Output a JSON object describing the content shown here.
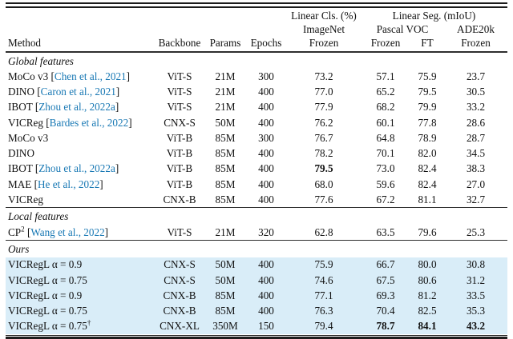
{
  "colors": {
    "citation_blue": "#1878b4",
    "highlight_blue": "#d9edf8",
    "text": "#111111"
  },
  "header": {
    "group_cls": "Linear Cls. (%)",
    "group_seg": "Linear Seg. (mIoU)",
    "sub_imagenet": "ImageNet",
    "sub_pascal": "Pascal VOC",
    "sub_ade": "ADE20k",
    "col_method": "Method",
    "col_backbone": "Backbone",
    "col_params": "Params",
    "col_epochs": "Epochs",
    "frozen_cls": "Frozen",
    "frozen_voc": "Frozen",
    "ft_voc": "FT",
    "frozen_ade": "Frozen"
  },
  "sections": [
    {
      "label": "Global features",
      "highlight": false,
      "rows": [
        {
          "method": "MoCo v3",
          "cite": "Chen et al., 2021",
          "backbone": "ViT-S",
          "params": "21M",
          "epochs": "300",
          "values": [
            "73.2",
            "57.1",
            "75.9",
            "23.7"
          ],
          "bold": []
        },
        {
          "method": "DINO",
          "cite": "Caron et al., 2021",
          "backbone": "ViT-S",
          "params": "21M",
          "epochs": "400",
          "values": [
            "77.0",
            "65.2",
            "79.5",
            "30.5"
          ],
          "bold": []
        },
        {
          "method": "IBOT",
          "cite": "Zhou et al., 2022a",
          "backbone": "ViT-S",
          "params": "21M",
          "epochs": "400",
          "values": [
            "77.9",
            "68.2",
            "79.9",
            "33.2"
          ],
          "bold": []
        },
        {
          "method": "VICReg",
          "cite": "Bardes et al., 2022",
          "backbone": "CNX-S",
          "params": "50M",
          "epochs": "400",
          "values": [
            "76.2",
            "60.1",
            "77.8",
            "28.6"
          ],
          "bold": []
        },
        {
          "method": "MoCo v3",
          "backbone": "ViT-B",
          "params": "85M",
          "epochs": "300",
          "values": [
            "76.7",
            "64.8",
            "78.9",
            "28.7"
          ],
          "bold": []
        },
        {
          "method": "DINO",
          "backbone": "ViT-B",
          "params": "85M",
          "epochs": "400",
          "values": [
            "78.2",
            "70.1",
            "82.0",
            "34.5"
          ],
          "bold": []
        },
        {
          "method": "IBOT",
          "cite": "Zhou et al., 2022a",
          "backbone": "ViT-B",
          "params": "85M",
          "epochs": "400",
          "values": [
            "79.5",
            "73.0",
            "82.4",
            "38.3"
          ],
          "bold": [
            0
          ]
        },
        {
          "method": "MAE",
          "cite": "He et al., 2022",
          "backbone": "ViT-B",
          "params": "85M",
          "epochs": "400",
          "values": [
            "68.0",
            "59.6",
            "82.4",
            "27.0"
          ],
          "bold": []
        },
        {
          "method": "VICReg",
          "backbone": "CNX-B",
          "params": "85M",
          "epochs": "400",
          "values": [
            "77.6",
            "67.2",
            "81.1",
            "32.7"
          ],
          "bold": []
        }
      ]
    },
    {
      "label": "Local features",
      "highlight": false,
      "rows": [
        {
          "method": "CP",
          "sup": "2",
          "cite": "Wang et al., 2022",
          "backbone": "ViT-S",
          "params": "21M",
          "epochs": "320",
          "values": [
            "62.8",
            "63.5",
            "79.6",
            "25.3"
          ],
          "bold": []
        }
      ]
    },
    {
      "label": "Ours",
      "highlight": true,
      "rows": [
        {
          "method": "VICRegL α = 0.9",
          "backbone": "CNX-S",
          "params": "50M",
          "epochs": "400",
          "values": [
            "75.9",
            "66.7",
            "80.0",
            "30.8"
          ],
          "bold": []
        },
        {
          "method": "VICRegL α = 0.75",
          "backbone": "CNX-S",
          "params": "50M",
          "epochs": "400",
          "values": [
            "74.6",
            "67.5",
            "80.6",
            "31.2"
          ],
          "bold": []
        },
        {
          "method": "VICRegL α = 0.9",
          "backbone": "CNX-B",
          "params": "85M",
          "epochs": "400",
          "values": [
            "77.1",
            "69.3",
            "81.2",
            "33.5"
          ],
          "bold": []
        },
        {
          "method": "VICRegL α = 0.75",
          "backbone": "CNX-B",
          "params": "85M",
          "epochs": "400",
          "values": [
            "76.3",
            "70.4",
            "82.5",
            "35.3"
          ],
          "bold": []
        },
        {
          "method": "VICRegL α = 0.75",
          "sup": "†",
          "backbone": "CNX-XL",
          "params": "350M",
          "epochs": "150",
          "values": [
            "79.4",
            "78.7",
            "84.1",
            "43.2"
          ],
          "bold": [
            1,
            2,
            3
          ]
        }
      ]
    }
  ]
}
